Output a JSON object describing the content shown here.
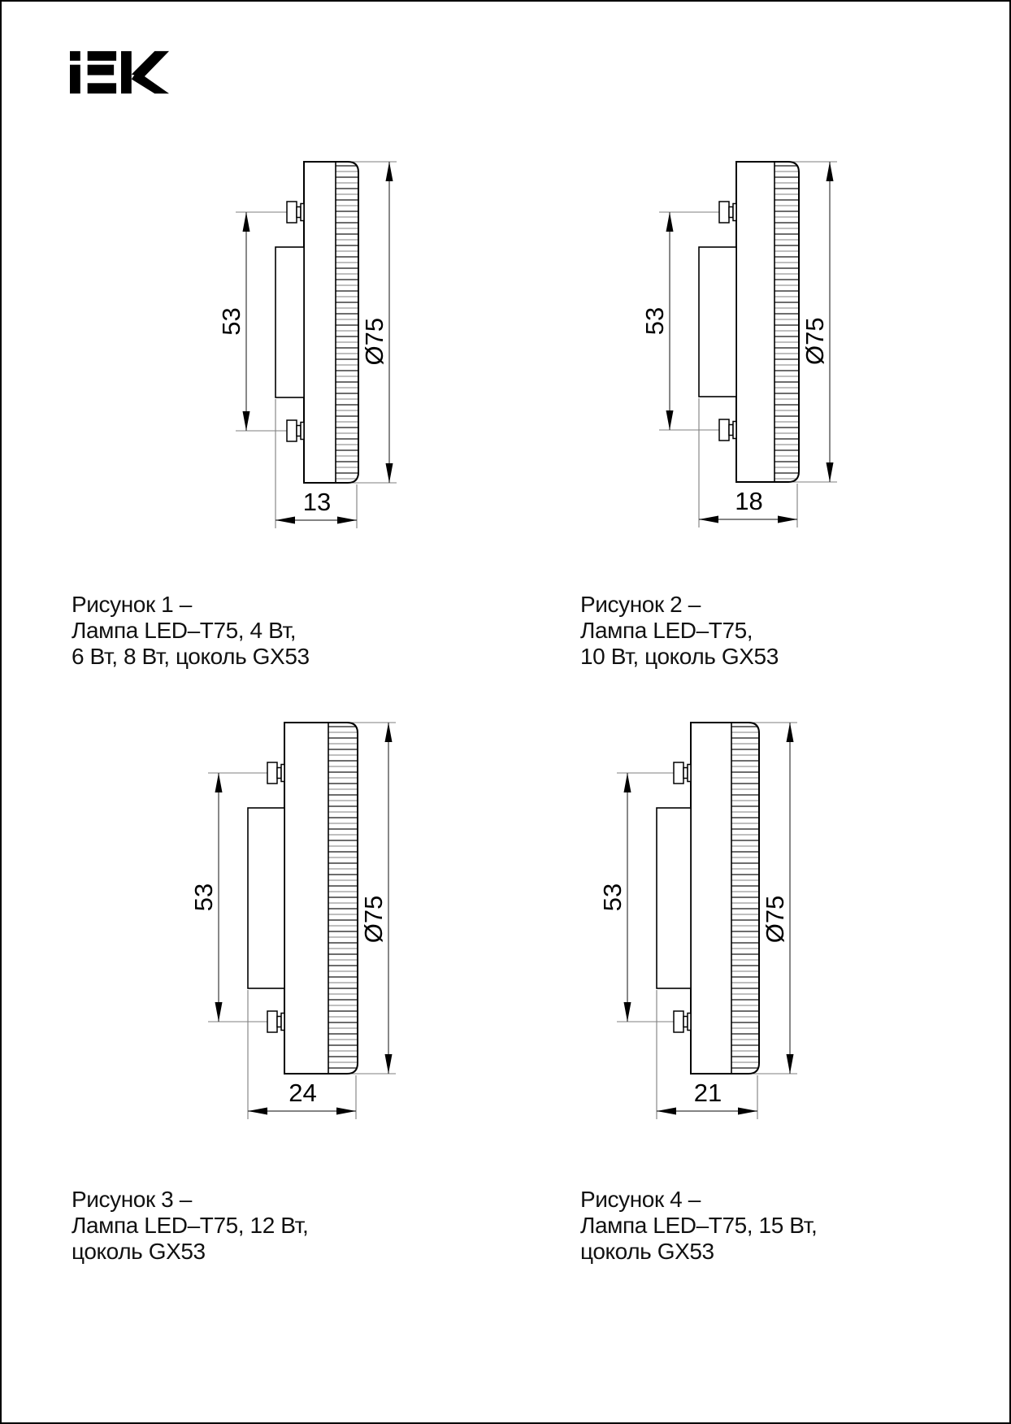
{
  "brand": {
    "logo_text": "iEK"
  },
  "figures": [
    {
      "number": "1",
      "caption_lines": [
        "Рисунок 1 –",
        "Лампа LED–T75, 4 Вт,",
        "6 Вт, 8 Вт, цоколь GX53"
      ],
      "dims": {
        "pin_spacing": "53",
        "diameter": "Ø75",
        "height": "13"
      }
    },
    {
      "number": "2",
      "caption_lines": [
        "Рисунок 2 –",
        "Лампа LED–T75,",
        "10 Вт, цоколь GX53"
      ],
      "dims": {
        "pin_spacing": "53",
        "diameter": "Ø75",
        "height": "18"
      }
    },
    {
      "number": "3",
      "caption_lines": [
        "Рисунок 3 –",
        "Лампа LED–T75, 12 Вт,",
        "цоколь GX53"
      ],
      "dims": {
        "pin_spacing": "53",
        "diameter": "Ø75",
        "height": "24"
      }
    },
    {
      "number": "4",
      "caption_lines": [
        "Рисунок 4 –",
        "Лампа LED–T75, 15 Вт,",
        "цоколь GX53"
      ],
      "dims": {
        "pin_spacing": "53",
        "diameter": "Ø75",
        "height": "21"
      }
    }
  ]
}
